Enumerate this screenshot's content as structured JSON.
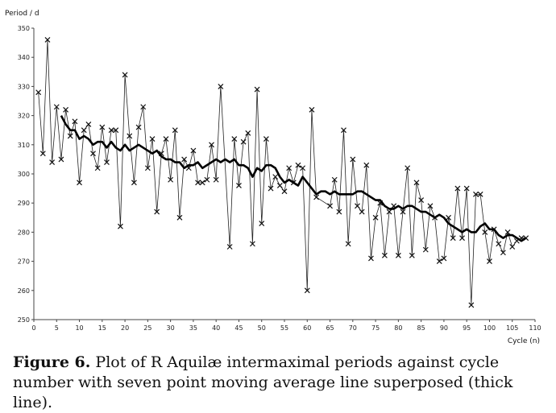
{
  "chart_data": {
    "type": "line",
    "xlabel": "Cycle (n)",
    "ylabel": "Period / d",
    "xlim": [
      0,
      110
    ],
    "ylim": [
      250,
      350
    ],
    "xticks": [
      0,
      5,
      10,
      15,
      20,
      25,
      30,
      35,
      40,
      45,
      50,
      55,
      60,
      65,
      70,
      75,
      80,
      85,
      90,
      95,
      100,
      105,
      110
    ],
    "yticks": [
      250,
      260,
      270,
      280,
      290,
      300,
      310,
      320,
      330,
      340,
      350
    ],
    "grid": false,
    "series": [
      {
        "style": "thin line with x markers",
        "x": [
          1,
          2,
          3,
          4,
          5,
          6,
          7,
          8,
          9,
          10,
          11,
          12,
          13,
          14,
          15,
          16,
          17,
          18,
          19,
          20,
          21,
          22,
          23,
          24,
          25,
          26,
          27,
          28,
          29,
          30,
          31,
          32,
          33,
          34,
          35,
          36,
          37,
          38,
          39,
          40,
          41,
          43,
          44,
          45,
          46,
          47,
          48,
          49,
          50,
          51,
          52,
          53,
          54,
          55,
          56,
          57,
          58,
          59,
          60,
          61,
          62,
          65,
          66,
          67,
          68,
          69,
          70,
          71,
          72,
          73,
          74,
          75,
          76,
          77,
          78,
          79,
          80,
          81,
          82,
          83,
          84,
          85,
          86,
          87,
          88,
          89,
          90,
          91,
          92,
          93,
          94,
          95,
          96,
          97,
          98,
          99,
          100,
          101,
          102,
          103,
          104,
          105,
          106,
          107,
          108
        ],
        "y": [
          328,
          307,
          346,
          304,
          323,
          305,
          322,
          313,
          318,
          297,
          315,
          317,
          307,
          302,
          316,
          304,
          315,
          315,
          282,
          334,
          313,
          297,
          316,
          323,
          302,
          312,
          287,
          307,
          312,
          298,
          315,
          285,
          305,
          302,
          308,
          297,
          297,
          298,
          310,
          298,
          330,
          275,
          312,
          296,
          311,
          314,
          276,
          329,
          283,
          312,
          295,
          299,
          296,
          294,
          302,
          297,
          303,
          302,
          260,
          322,
          292,
          289,
          298,
          287,
          315,
          276,
          305,
          289,
          287,
          303,
          271,
          285,
          290,
          272,
          287,
          289,
          272,
          287,
          302,
          272,
          297,
          291,
          274,
          289,
          285,
          270,
          271,
          285,
          278,
          295,
          278,
          295,
          255,
          293,
          293,
          280,
          270,
          281,
          276,
          273,
          280,
          275,
          277,
          278,
          278
        ]
      },
      {
        "style": "thick line (7-point moving average)",
        "x": [
          6,
          7,
          8,
          9,
          10,
          11,
          12,
          13,
          14,
          15,
          16,
          17,
          18,
          19,
          20,
          21,
          22,
          23,
          24,
          25,
          26,
          27,
          28,
          29,
          30,
          31,
          32,
          33,
          34,
          35,
          36,
          37,
          38,
          39,
          40,
          41,
          42,
          43,
          44,
          45,
          46,
          47,
          48,
          49,
          50,
          51,
          52,
          53,
          54,
          55,
          56,
          57,
          58,
          59,
          60,
          61,
          62,
          63,
          64,
          65,
          66,
          67,
          68,
          69,
          70,
          71,
          72,
          73,
          74,
          75,
          76,
          77,
          78,
          79,
          80,
          81,
          82,
          83,
          84,
          85,
          86,
          87,
          88,
          89,
          90,
          91,
          92,
          93,
          94,
          95,
          96,
          97,
          98,
          99,
          100,
          101,
          102,
          103,
          104,
          105,
          106,
          107,
          108
        ],
        "y": [
          320,
          317,
          315,
          315,
          312,
          313,
          312,
          310,
          311,
          311,
          309,
          311,
          309,
          308,
          310,
          308,
          309,
          310,
          309,
          308,
          307,
          308,
          306,
          305,
          305,
          304,
          304,
          302,
          303,
          303,
          304,
          302,
          303,
          304,
          305,
          304,
          305,
          304,
          305,
          303,
          303,
          302,
          299,
          302,
          301,
          303,
          303,
          302,
          299,
          297,
          298,
          297,
          296,
          299,
          297,
          295,
          293,
          294,
          294,
          293,
          294,
          293,
          293,
          293,
          293,
          294,
          294,
          293,
          292,
          291,
          291,
          289,
          288,
          288,
          289,
          288,
          289,
          289,
          288,
          287,
          287,
          286,
          285,
          286,
          285,
          283,
          282,
          281,
          280,
          281,
          280,
          280,
          282,
          283,
          281,
          281,
          279,
          278,
          279,
          279,
          278,
          277,
          278
        ]
      }
    ]
  },
  "caption": {
    "label": "Figure 6.",
    "text": "Plot of R Aquilæ intermaximal periods against cycle number with seven point moving average line superposed (thick line)."
  }
}
